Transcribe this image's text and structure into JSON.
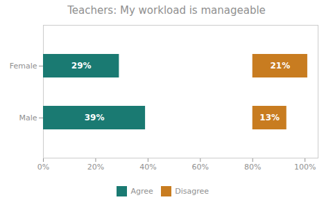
{
  "chart_data": {
    "type": "bar",
    "orientation": "horizontal",
    "title": "Teachers: My workload is manageable",
    "categories": [
      "Female",
      "Male"
    ],
    "series": [
      {
        "name": "Agree",
        "color": "#1a7a72",
        "start": 0,
        "values": [
          29,
          39
        ],
        "value_labels": [
          "29%",
          "39%"
        ]
      },
      {
        "name": "Disagree",
        "color": "#c87c20",
        "start": 80,
        "values": [
          21,
          13
        ],
        "value_labels": [
          "21%",
          "13%"
        ]
      }
    ],
    "xlim": [
      0,
      105
    ],
    "xticks": [
      {
        "value": 0,
        "label": "0%"
      },
      {
        "value": 20,
        "label": "20%"
      },
      {
        "value": 40,
        "label": "40%"
      },
      {
        "value": 60,
        "label": "60%"
      },
      {
        "value": 80,
        "label": "80%"
      },
      {
        "value": 100,
        "label": "100%"
      }
    ],
    "data_labels": true,
    "grid": false,
    "legend": "bottom"
  }
}
